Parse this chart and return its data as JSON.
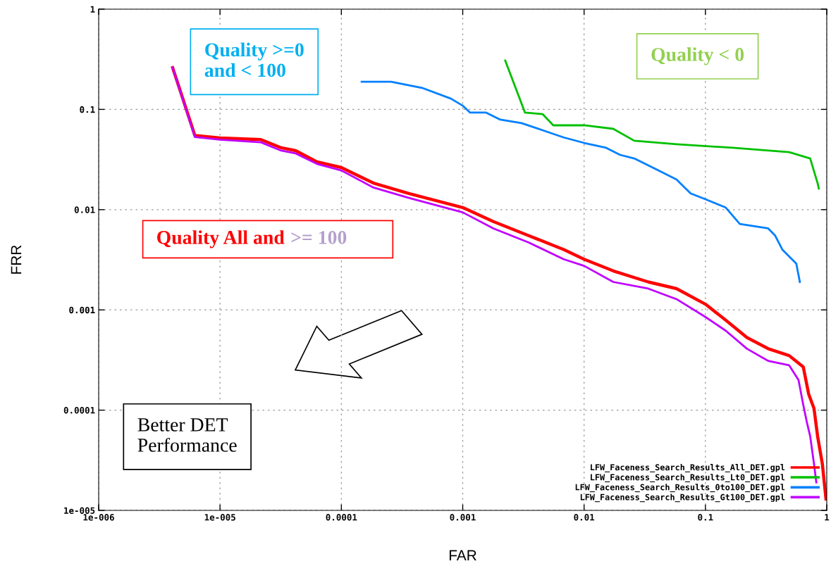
{
  "chart_data": {
    "type": "line",
    "xlabel": "FAR",
    "ylabel": "FRR",
    "log": "xy",
    "grid": true,
    "legend": "bottom right",
    "line_style": "solid",
    "xlim": [
      1e-06,
      1
    ],
    "ylim": [
      1e-05,
      1
    ],
    "xticks": [
      {
        "value": 1e-06,
        "label": "1e-006"
      },
      {
        "value": 1e-05,
        "label": "1e-005"
      },
      {
        "value": 0.0001,
        "label": "0.0001"
      },
      {
        "value": 0.001,
        "label": "0.001"
      },
      {
        "value": 0.01,
        "label": "0.01"
      },
      {
        "value": 0.1,
        "label": "0.1"
      },
      {
        "value": 1,
        "label": "1"
      }
    ],
    "yticks": [
      {
        "value": 1e-05,
        "label": "1e-005"
      },
      {
        "value": 0.0001,
        "label": "0.0001"
      },
      {
        "value": 0.001,
        "label": "0.001"
      },
      {
        "value": 0.01,
        "label": "0.01"
      },
      {
        "value": 0.1,
        "label": "0.1"
      },
      {
        "value": 1,
        "label": "1"
      }
    ],
    "series": [
      {
        "name": "LFW_Faceness_Search_Results_All_DET.gpl",
        "color": "#ff0000",
        "x": [
          4.07e-06,
          6.2e-06,
          1e-05,
          2.17e-05,
          3.2e-05,
          4.2e-05,
          6.3e-05,
          0.0001,
          0.000184,
          0.00036,
          0.001,
          0.00179,
          0.0035,
          0.0068,
          0.01,
          0.0174,
          0.0338,
          0.0578,
          0.1,
          0.147,
          0.22,
          0.329,
          0.49,
          0.64,
          0.71,
          0.785,
          0.84,
          0.92,
          0.985
        ],
        "values": [
          0.261,
          0.055,
          0.0519,
          0.05,
          0.0414,
          0.0388,
          0.03,
          0.0263,
          0.0184,
          0.0145,
          0.0105,
          0.0076,
          0.0055,
          0.004,
          0.0032,
          0.00245,
          0.0019,
          0.00163,
          0.00114,
          0.00079,
          0.00053,
          0.00041,
          0.00035,
          0.00027,
          0.000144,
          0.000104,
          5.5e-05,
          2.9e-05,
          1.3e-05
        ]
      },
      {
        "name": "LFW_Faceness_Search_Results_Lt0_DET.gpl",
        "color": "#00c000",
        "x": [
          0.00224,
          0.00326,
          0.00455,
          0.00557,
          0.01,
          0.0174,
          0.0259,
          0.0578,
          0.168,
          0.49,
          0.73,
          0.84,
          0.86
        ],
        "values": [
          0.307,
          0.093,
          0.0898,
          0.0694,
          0.0694,
          0.064,
          0.0487,
          0.0449,
          0.0414,
          0.0375,
          0.0324,
          0.0184,
          0.0162
        ]
      },
      {
        "name": "LFW_Faceness_Search_Results_0to100_DET.gpl",
        "color": "#0080ff",
        "x": [
          0.000147,
          0.000257,
          0.00047,
          0.0008,
          0.001,
          0.00115,
          0.00156,
          0.00204,
          0.00305,
          0.00455,
          0.0068,
          0.01,
          0.0152,
          0.0198,
          0.0259,
          0.0388,
          0.0578,
          0.0755,
          0.1,
          0.147,
          0.192,
          0.329,
          0.376,
          0.43,
          0.561,
          0.6
        ],
        "values": [
          0.189,
          0.189,
          0.163,
          0.128,
          0.109,
          0.093,
          0.093,
          0.079,
          0.073,
          0.062,
          0.0525,
          0.0463,
          0.0414,
          0.0352,
          0.0324,
          0.0255,
          0.02,
          0.0145,
          0.0127,
          0.0105,
          0.0072,
          0.0065,
          0.0055,
          0.004,
          0.00289,
          0.0019
        ]
      },
      {
        "name": "LFW_Faceness_Search_Results_Gt100_DET.gpl",
        "color": "#c000ff",
        "x": [
          4.07e-06,
          6.2e-06,
          1e-05,
          2.17e-05,
          3.2e-05,
          4.2e-05,
          6.3e-05,
          0.0001,
          0.000184,
          0.00036,
          0.001,
          0.00179,
          0.0035,
          0.0068,
          0.01,
          0.0174,
          0.0338,
          0.0578,
          0.1,
          0.147,
          0.22,
          0.329,
          0.49,
          0.585,
          0.64,
          0.685,
          0.73,
          0.785,
          0.82
        ],
        "values": [
          0.261,
          0.053,
          0.05,
          0.047,
          0.0388,
          0.0364,
          0.0286,
          0.0246,
          0.0166,
          0.0131,
          0.0094,
          0.0065,
          0.0047,
          0.0032,
          0.00275,
          0.0019,
          0.00163,
          0.00128,
          0.00085,
          0.00062,
          0.00041,
          0.00031,
          0.00028,
          0.0002,
          0.000113,
          7.6e-05,
          5.5e-05,
          2.9e-05,
          1.9e-05
        ]
      }
    ],
    "annotations": [
      "Quality >=0\nand < 100",
      "Quality < 0",
      "Quality All and",
      ">= 100",
      "Better DET\nPerformance"
    ]
  }
}
